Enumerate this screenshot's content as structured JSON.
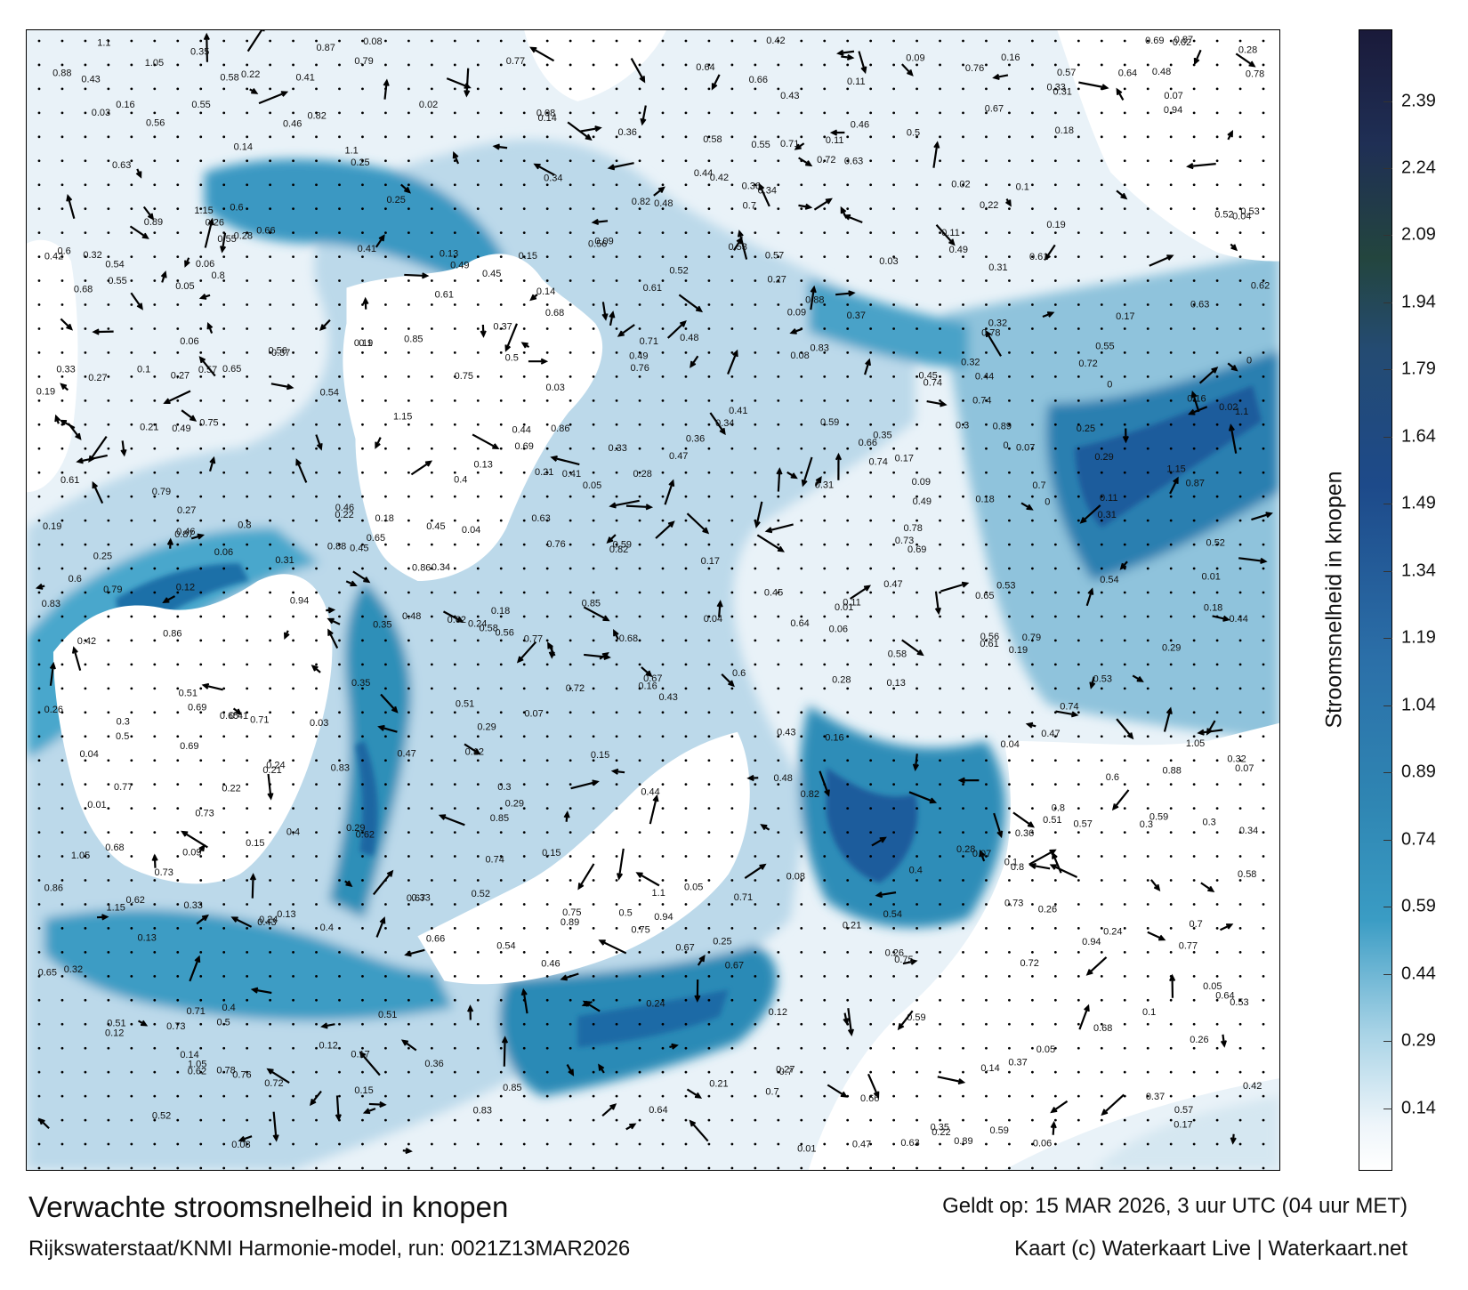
{
  "map": {
    "title": "Verwachte stroomsnelheid in knopen",
    "valid_time": "Geldt op: 15 MAR 2026, 3 uur UTC (04 uur MET)",
    "model_run": "Rijkswaterstaat/KNMI Harmonie-model, run: 0021Z13MAR2026",
    "credit": "Kaart (c) Waterkaart Live | Waterkaart.net",
    "colorbar_label": "Stroomsnelheid in knopen",
    "colorbar_ticks": [
      "0.14",
      "0.29",
      "0.44",
      "0.59",
      "0.74",
      "0.89",
      "1.04",
      "1.19",
      "1.34",
      "1.49",
      "1.64",
      "1.79",
      "1.94",
      "2.09",
      "2.24",
      "2.39"
    ],
    "colorbar_range": [
      0,
      2.55
    ],
    "colors": {
      "land": "#ffffff",
      "low": "#eef5fa",
      "mid": "#3a9cc4",
      "high": "#1d4a8a",
      "max": "#1a1a3a"
    },
    "speed_labels": [
      "0.16",
      "0.18",
      "0.19",
      "0.17",
      "0.15",
      "0.14",
      "0.13",
      "0.12",
      "0.11",
      "0.09",
      "0.1",
      "0.04",
      "0.05",
      "0.06",
      "0.07",
      "0.08",
      "0.28",
      "0.29",
      "0.21",
      "0.22",
      "0.24",
      "0.25",
      "0.26",
      "0.27",
      "0.3",
      "0.31",
      "0.32",
      "0.33",
      "0.34",
      "0.35",
      "0.36",
      "0.37",
      "0.4",
      "0.41",
      "0.42",
      "0.43",
      "0.44",
      "0.45",
      "0.46",
      "0.47",
      "0.48",
      "0.49",
      "0.5",
      "0.51",
      "0.52",
      "0.53",
      "0.54",
      "0.55",
      "0.56",
      "0.57",
      "0.58",
      "0.59",
      "0.6",
      "0.61",
      "0.62",
      "0.63",
      "0.64",
      "0.65",
      "0.66",
      "0.67",
      "0.68",
      "0.69",
      "0.7",
      "0.71",
      "0.72",
      "0.73",
      "0.74",
      "0.75",
      "0.76",
      "0.77",
      "0.78",
      "0.79",
      "0.8",
      "0.82",
      "0.83",
      "0.85",
      "0.86",
      "0.87",
      "0.88",
      "0.89",
      "0.94",
      "1.05",
      "1.1",
      "1.15",
      "0.02",
      "0.03",
      "0.01",
      "0"
    ]
  }
}
